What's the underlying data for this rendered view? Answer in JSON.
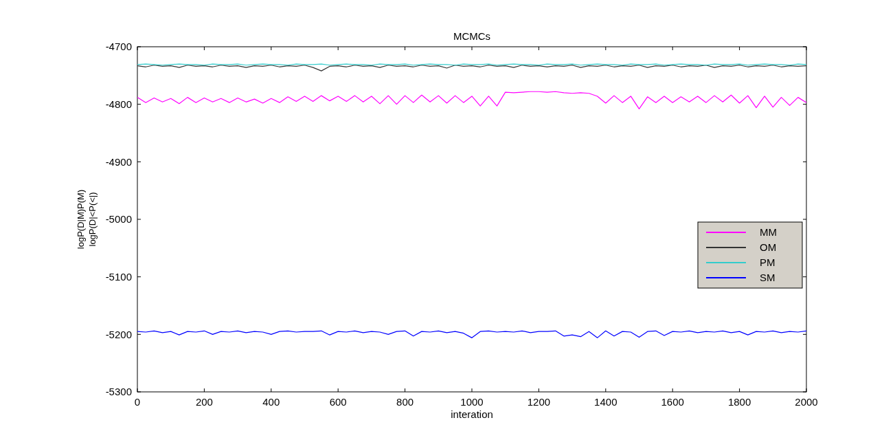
{
  "chart_data": {
    "type": "line",
    "title": "MCMCs",
    "xlabel": "interation",
    "ylabel": "logP(D|M)P(M)\nlogP(D|<P(<|)",
    "xlim": [
      0,
      2000
    ],
    "xticks": [
      0,
      200,
      400,
      600,
      800,
      1000,
      1200,
      1400,
      1600,
      1800,
      2000
    ],
    "ylim": [
      -5300,
      -4700
    ],
    "yticks": [
      -5300,
      -5200,
      -5100,
      -5000,
      -4900,
      -4800,
      -4700
    ],
    "grid": false,
    "legend": "right",
    "line_style": "solid",
    "marker": "none",
    "x": [
      0,
      25,
      50,
      75,
      100,
      125,
      150,
      175,
      200,
      225,
      250,
      275,
      300,
      325,
      350,
      375,
      400,
      425,
      450,
      475,
      500,
      525,
      550,
      575,
      600,
      625,
      650,
      675,
      700,
      725,
      750,
      775,
      800,
      825,
      850,
      875,
      900,
      925,
      950,
      975,
      1000,
      1025,
      1050,
      1075,
      1100,
      1125,
      1150,
      1175,
      1200,
      1225,
      1250,
      1275,
      1300,
      1325,
      1350,
      1375,
      1400,
      1425,
      1450,
      1475,
      1500,
      1525,
      1550,
      1575,
      1600,
      1625,
      1650,
      1675,
      1700,
      1725,
      1750,
      1775,
      1800,
      1825,
      1850,
      1875,
      1900,
      1925,
      1950,
      1975,
      2000
    ],
    "series": [
      {
        "name": "MM",
        "color": "#ff00ff",
        "values": [
          -4788,
          -4797,
          -4789,
          -4796,
          -4790,
          -4799,
          -4788,
          -4797,
          -4789,
          -4796,
          -4790,
          -4797,
          -4789,
          -4796,
          -4791,
          -4798,
          -4790,
          -4797,
          -4787,
          -4795,
          -4786,
          -4795,
          -4785,
          -4794,
          -4786,
          -4795,
          -4785,
          -4796,
          -4786,
          -4799,
          -4785,
          -4800,
          -4785,
          -4797,
          -4784,
          -4796,
          -4785,
          -4798,
          -4785,
          -4797,
          -4786,
          -4803,
          -4786,
          -4803,
          -4779,
          -4780,
          -4779,
          -4778,
          -4778,
          -4779,
          -4778,
          -4780,
          -4781,
          -4780,
          -4781,
          -4786,
          -4798,
          -4785,
          -4797,
          -4786,
          -4808,
          -4787,
          -4797,
          -4786,
          -4797,
          -4787,
          -4796,
          -4786,
          -4797,
          -4785,
          -4796,
          -4784,
          -4798,
          -4785,
          -4806,
          -4786,
          -4805,
          -4788,
          -4802,
          -4788,
          -4797
        ]
      },
      {
        "name": "OM",
        "color": "#333333",
        "values": [
          -4733,
          -4735,
          -4732,
          -4734,
          -4733,
          -4736,
          -4732,
          -4734,
          -4733,
          -4735,
          -4732,
          -4734,
          -4733,
          -4736,
          -4733,
          -4734,
          -4732,
          -4735,
          -4733,
          -4734,
          -4732,
          -4736,
          -4742,
          -4734,
          -4733,
          -4735,
          -4732,
          -4734,
          -4733,
          -4736,
          -4732,
          -4734,
          -4733,
          -4735,
          -4732,
          -4734,
          -4733,
          -4737,
          -4732,
          -4734,
          -4733,
          -4735,
          -4732,
          -4734,
          -4733,
          -4736,
          -4732,
          -4734,
          -4733,
          -4735,
          -4733,
          -4734,
          -4732,
          -4736,
          -4733,
          -4734,
          -4732,
          -4735,
          -4733,
          -4734,
          -4732,
          -4736,
          -4733,
          -4734,
          -4732,
          -4735,
          -4733,
          -4734,
          -4732,
          -4736,
          -4733,
          -4734,
          -4732,
          -4735,
          -4733,
          -4734,
          -4732,
          -4735,
          -4733,
          -4734,
          -4733
        ]
      },
      {
        "name": "PM",
        "color": "#33cccc",
        "values": [
          -4731,
          -4730,
          -4731,
          -4732,
          -4731,
          -4730,
          -4731,
          -4731,
          -4732,
          -4730,
          -4731,
          -4731,
          -4730,
          -4732,
          -4731,
          -4730,
          -4731,
          -4731,
          -4732,
          -4730,
          -4731,
          -4731,
          -4730,
          -4732,
          -4731,
          -4730,
          -4731,
          -4731,
          -4732,
          -4730,
          -4731,
          -4731,
          -4730,
          -4732,
          -4731,
          -4730,
          -4731,
          -4731,
          -4732,
          -4730,
          -4731,
          -4731,
          -4730,
          -4732,
          -4731,
          -4730,
          -4731,
          -4731,
          -4732,
          -4730,
          -4731,
          -4731,
          -4730,
          -4732,
          -4731,
          -4730,
          -4731,
          -4731,
          -4732,
          -4730,
          -4731,
          -4731,
          -4730,
          -4732,
          -4731,
          -4730,
          -4731,
          -4731,
          -4732,
          -4730,
          -4731,
          -4731,
          -4730,
          -4732,
          -4731,
          -4730,
          -4731,
          -4731,
          -4732,
          -4730,
          -4731
        ]
      },
      {
        "name": "SM",
        "color": "#0000ff",
        "values": [
          -5195,
          -5196,
          -5194,
          -5197,
          -5195,
          -5201,
          -5195,
          -5196,
          -5194,
          -5200,
          -5195,
          -5196,
          -5194,
          -5197,
          -5195,
          -5196,
          -5200,
          -5195,
          -5194,
          -5196,
          -5195,
          -5195,
          -5194,
          -5201,
          -5195,
          -5196,
          -5194,
          -5197,
          -5195,
          -5196,
          -5200,
          -5195,
          -5194,
          -5203,
          -5195,
          -5196,
          -5194,
          -5197,
          -5195,
          -5198,
          -5206,
          -5195,
          -5194,
          -5196,
          -5195,
          -5196,
          -5194,
          -5197,
          -5195,
          -5195,
          -5194,
          -5203,
          -5201,
          -5204,
          -5195,
          -5206,
          -5194,
          -5203,
          -5195,
          -5196,
          -5205,
          -5195,
          -5194,
          -5202,
          -5195,
          -5196,
          -5194,
          -5197,
          -5195,
          -5196,
          -5194,
          -5197,
          -5195,
          -5201,
          -5195,
          -5196,
          -5194,
          -5197,
          -5195,
          -5196,
          -5194
        ]
      }
    ]
  }
}
